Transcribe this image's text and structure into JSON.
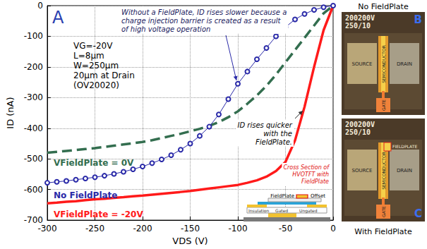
{
  "chart_data": {
    "type": "line",
    "panel_letter": "A",
    "x_label": "VDS (V)",
    "y_label": "ID (nA)",
    "xlim": [
      -300,
      0
    ],
    "xticks": [
      -300,
      -250,
      -200,
      -150,
      -100,
      -50,
      0
    ],
    "ylim": [
      -700,
      0
    ],
    "yticks": [
      -700,
      -600,
      -500,
      -400,
      -300,
      -200,
      -100,
      0
    ],
    "grid": true,
    "x": [
      -300,
      -290,
      -280,
      -270,
      -260,
      -250,
      -240,
      -230,
      -220,
      -210,
      -200,
      -190,
      -180,
      -170,
      -160,
      -150,
      -140,
      -130,
      -120,
      -110,
      -100,
      -90,
      -80,
      -70,
      -60,
      -50,
      -40,
      -30,
      -20,
      -10,
      0
    ],
    "series": [
      {
        "name": "VFieldPlate = 0V",
        "color": "#336e4f",
        "line_style": "dashed",
        "values": [
          -480,
          -477,
          -474,
          -471,
          -468,
          -465,
          -461,
          -457,
          -453,
          -449,
          -445,
          -439,
          -432,
          -425,
          -418,
          -410,
          -402,
          -392,
          -380,
          -364,
          -345,
          -320,
          -293,
          -262,
          -225,
          -185,
          -145,
          -105,
          -65,
          -25,
          0
        ]
      },
      {
        "name": "No FieldPlate",
        "color": "#2a2aa8",
        "line_style": "solid",
        "marker": "circle",
        "values": [
          -578,
          -575,
          -572,
          -568,
          -564,
          -560,
          -555,
          -549,
          -542,
          -534,
          -525,
          -514,
          -502,
          -488,
          -470,
          -450,
          -425,
          -395,
          -355,
          -305,
          -255,
          -215,
          -175,
          -138,
          -100,
          -70,
          -45,
          -27,
          -14,
          -5,
          0
        ]
      },
      {
        "name": "VFieldPlate = -20V",
        "color": "#ff1a1a",
        "line_style": "solid",
        "values": [
          -645,
          -643,
          -640,
          -638,
          -635,
          -632,
          -630,
          -627,
          -625,
          -622,
          -620,
          -617,
          -614,
          -611,
          -608,
          -605,
          -601,
          -597,
          -593,
          -589,
          -585,
          -578,
          -570,
          -558,
          -540,
          -510,
          -440,
          -330,
          -200,
          -80,
          0
        ]
      }
    ],
    "annotations": {
      "parameters": [
        "VG=-20V",
        "L=8µm",
        "W=250µm",
        "20µm at Drain",
        "(OV20020)"
      ],
      "note_without_fieldplate": "Without a FieldPlate, ID rises slower because a charge injection barrier is created as a result of high voltage operation",
      "note_with_fieldplate": "ID rises quicker with the FieldPlate.",
      "cross_section": {
        "title": "Cross Section of HVOTFT with FieldPlate",
        "labels": {
          "fieldplate": "FieldPlate",
          "offset": "Offset",
          "insulation": "Insulation",
          "gated": "Gated",
          "ungated": "Ungated"
        }
      }
    }
  },
  "photos": [
    {
      "letter": "B",
      "caption": "No FieldPlate",
      "chip_text": [
        "200200V",
        "250/10"
      ],
      "labels": {
        "source": "SOURCE",
        "semiconductor": "SEMICONDUCTOR",
        "drain": "DRAIN",
        "gate": "GATE"
      }
    },
    {
      "letter": "C",
      "caption": "With FieldPlate",
      "chip_text": [
        "200200V",
        "250/10"
      ],
      "labels": {
        "source": "SOURCE",
        "semiconductor": "SEMICONDUCTOR",
        "drain": "DRAIN",
        "gate": "GATE",
        "fieldplate": "FIELDPLATE"
      }
    }
  ]
}
